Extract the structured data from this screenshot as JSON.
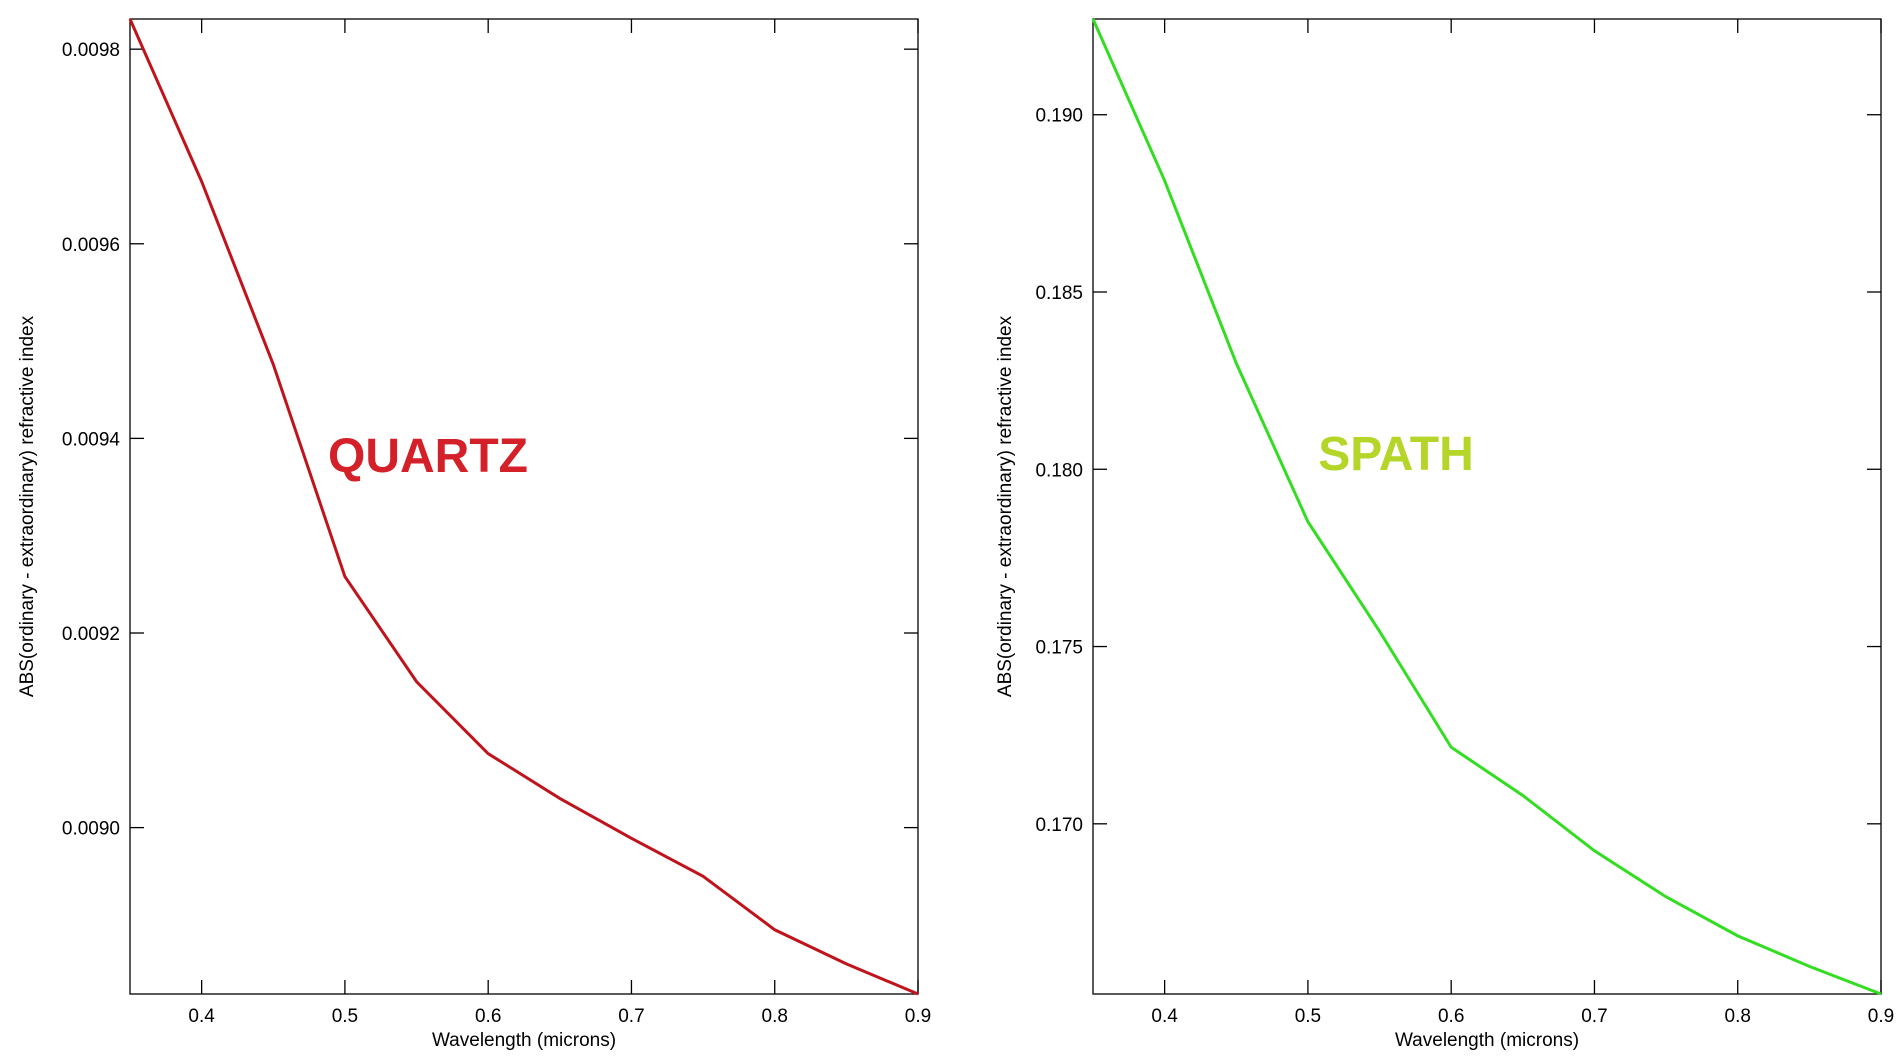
{
  "chart_data": [
    {
      "type": "line",
      "annotation": "QUARTZ",
      "annotation_color": "#d42028",
      "xlabel": "Wavelength (microns)",
      "ylabel": "ABS(ordinary - extraordinary) refractive index",
      "x": [
        0.35,
        0.4,
        0.45,
        0.5,
        0.55,
        0.6,
        0.65,
        0.7,
        0.75,
        0.8,
        0.85,
        0.9
      ],
      "series": [
        {
          "color": "#c0141c",
          "values": [
            0.009831,
            0.009664,
            0.009476,
            0.009258,
            0.00915,
            0.009076,
            0.00903,
            0.008989,
            0.00895,
            0.008895,
            0.00886,
            0.008829
          ]
        }
      ],
      "xlim": [
        0.35,
        0.9
      ],
      "xticks": [
        0.4,
        0.5,
        0.6,
        0.7,
        0.8,
        0.9
      ],
      "ylim": [
        0.008829,
        0.009831
      ],
      "yticks": [
        {
          "value": 0.009,
          "label": "0.0090"
        },
        {
          "value": 0.0092,
          "label": "0.0092"
        },
        {
          "value": 0.0094,
          "label": "0.0094"
        },
        {
          "value": 0.0096,
          "label": "0.0096"
        },
        {
          "value": 0.0098,
          "label": "0.0098"
        }
      ]
    },
    {
      "type": "line",
      "annotation": "SPATH",
      "annotation_color": "#b5d629",
      "xlabel": "Wavelength (microns)",
      "ylabel": "ABS(ordinary - extraordinary) refractive index",
      "x": [
        0.35,
        0.4,
        0.45,
        0.5,
        0.55,
        0.6,
        0.65,
        0.7,
        0.75,
        0.8,
        0.85,
        0.9
      ],
      "series": [
        {
          "color": "#33dd22",
          "values": [
            0.1927,
            0.18814,
            0.18299,
            0.17852,
            0.17543,
            0.17216,
            0.1708,
            0.16924,
            0.16794,
            0.16684,
            0.16598,
            0.1652
          ]
        }
      ],
      "xlim": [
        0.35,
        0.9
      ],
      "xticks": [
        0.4,
        0.5,
        0.6,
        0.7,
        0.8,
        0.9
      ],
      "ylim": [
        0.1652,
        0.1927
      ],
      "yticks": [
        {
          "value": 0.17,
          "label": "0.170"
        },
        0.175,
        {
          "value": 0.18,
          "label": "0.180"
        },
        0.185,
        {
          "value": 0.19,
          "label": "0.190"
        }
      ]
    }
  ]
}
